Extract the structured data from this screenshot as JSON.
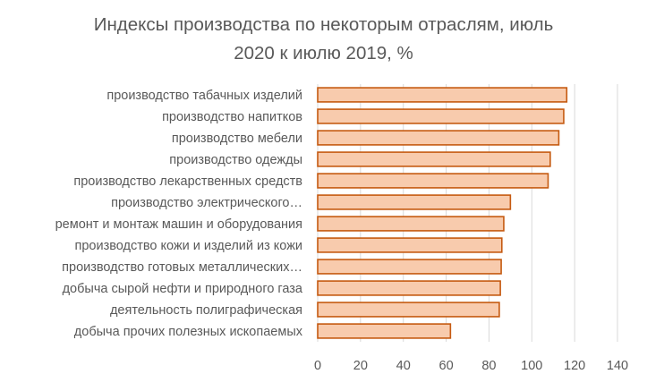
{
  "chart_data": {
    "type": "bar",
    "orientation": "horizontal",
    "title_line1": "Индексы производства по некоторым отраслям, июль",
    "title_line2": "2020 к июлю 2019, %",
    "categories": [
      "производство табачных изделий",
      "производство напитков",
      "производство мебели",
      "производство одежды",
      "производство лекарственных средств",
      "производство электрического…",
      "ремонт и монтаж машин и оборудования",
      "производство кожи и изделий из кожи",
      "производство готовых металлических…",
      "добыча сырой нефти и природного газа",
      "деятельность полиграфическая",
      "добыча прочих полезных ископаемых"
    ],
    "values": [
      116.3,
      114.9,
      112.6,
      108.6,
      107.6,
      90.0,
      86.9,
      86.0,
      85.7,
      85.3,
      84.8,
      62.0
    ],
    "xlim": [
      0,
      140
    ],
    "x_ticks": [
      "0",
      "20",
      "40",
      "60",
      "80",
      "100",
      "120",
      "140"
    ],
    "grid": true,
    "legend": "none",
    "colors": {
      "bar_fill": "#F8CBAD",
      "bar_stroke": "#C55A11",
      "grid": "#D9D9D9",
      "text": "#595959"
    }
  }
}
